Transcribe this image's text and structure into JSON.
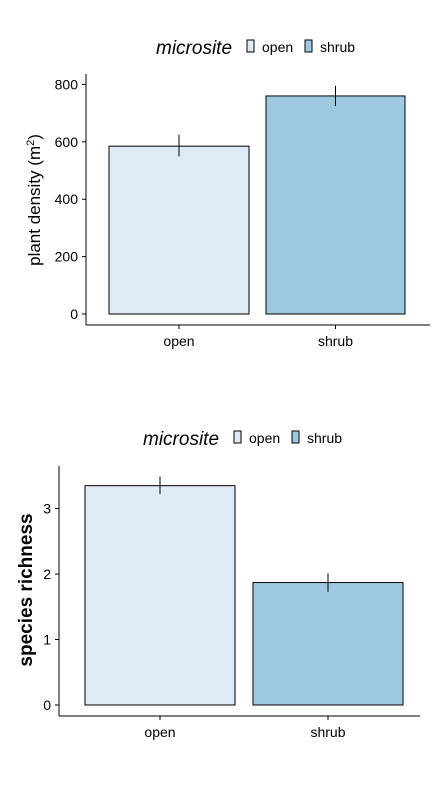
{
  "colors": {
    "open": "#deebf7",
    "shrub": "#9ecae1",
    "stroke": "#000000"
  },
  "chart_data": [
    {
      "type": "bar",
      "legend": {
        "title": "microsite",
        "position": "top",
        "entries": [
          "open",
          "shrub"
        ]
      },
      "categories": [
        "open",
        "shrub"
      ],
      "values": [
        585,
        760
      ],
      "errors": [
        [
          550,
          625
        ],
        [
          725,
          795
        ]
      ],
      "ylabel_main": "plant density (m",
      "ylabel_sup": "2",
      "ylabel_end": ")",
      "ylim": [
        0,
        840
      ],
      "yticks": [
        "0",
        "200",
        "400",
        "600",
        "800"
      ],
      "ytick_values": [
        0,
        200,
        400,
        600,
        800
      ],
      "grid": false
    },
    {
      "type": "bar",
      "legend": {
        "title": "microsite",
        "position": "top",
        "entries": [
          "open",
          "shrub"
        ]
      },
      "categories": [
        "open",
        "shrub"
      ],
      "values": [
        3.35,
        1.87
      ],
      "errors": [
        [
          3.22,
          3.49
        ],
        [
          1.73,
          2.01
        ]
      ],
      "ylabel": "species richness",
      "ylim": [
        0,
        3.65
      ],
      "yticks": [
        "0",
        "1",
        "2",
        "3"
      ],
      "ytick_values": [
        0,
        1,
        2,
        3
      ],
      "grid": false
    }
  ]
}
